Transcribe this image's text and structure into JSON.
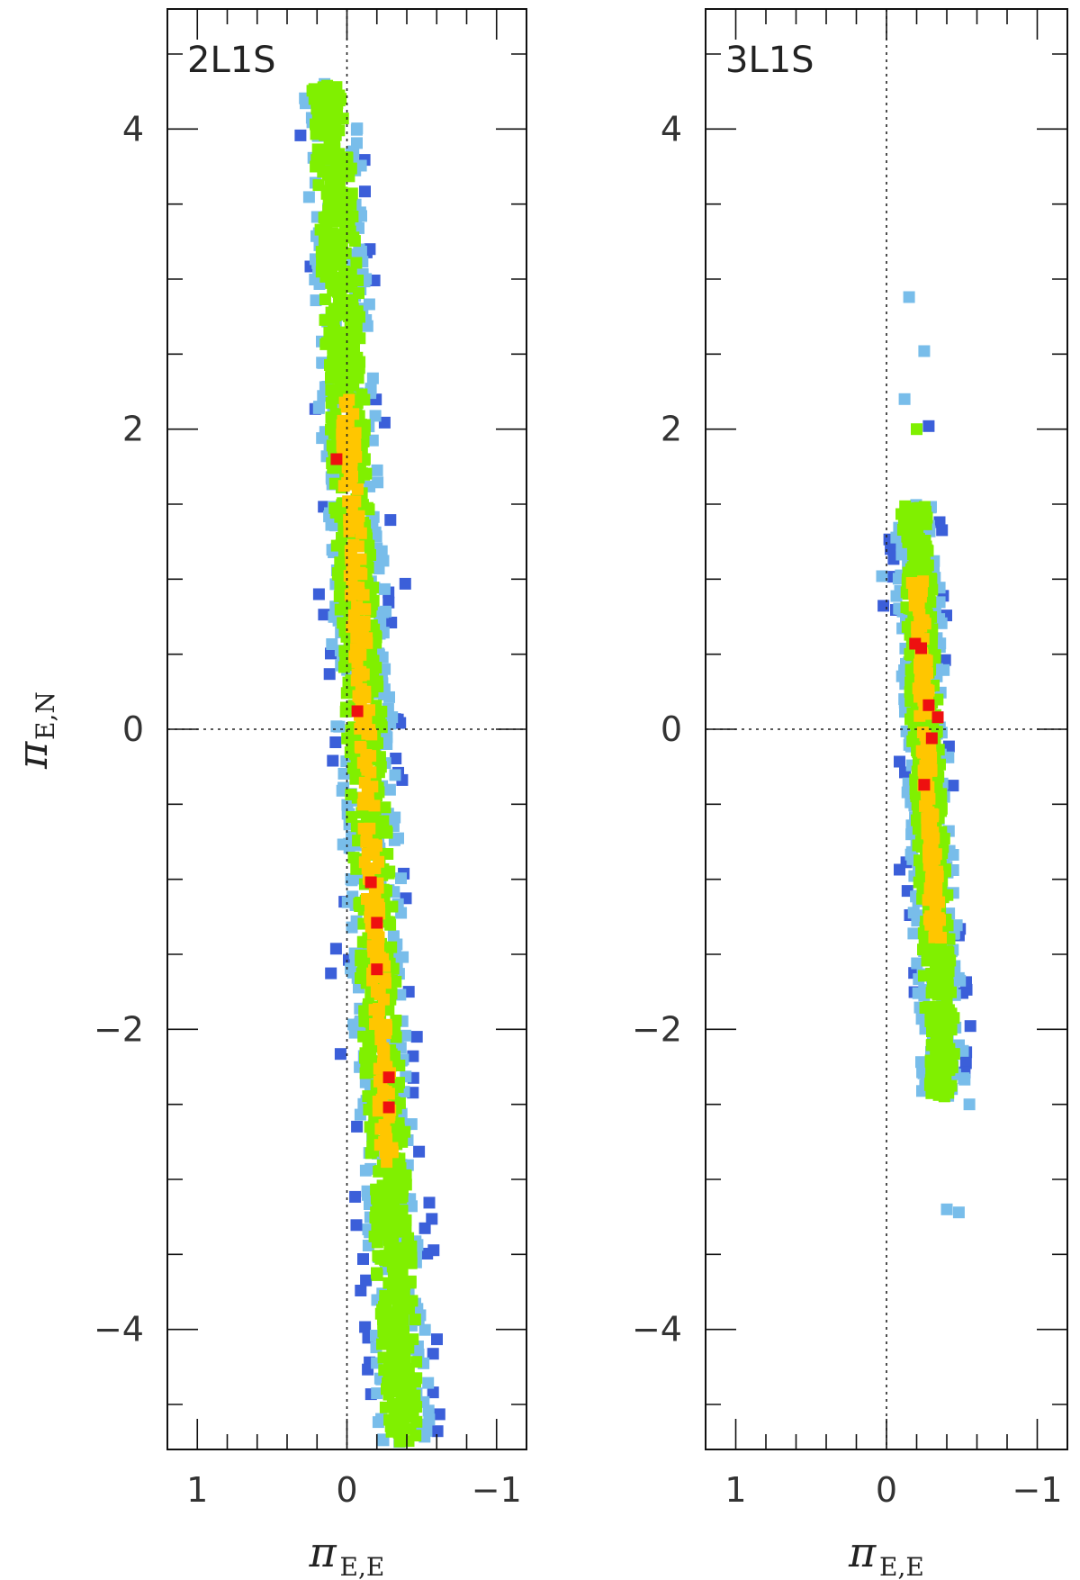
{
  "colors": {
    "frame": "#111111",
    "ref_line": "#222222",
    "level_colors": [
      "#3b5fd9",
      "#78bdea",
      "#80f000",
      "#ffc600",
      "#ee1010"
    ]
  },
  "chart_data": [
    {
      "type": "scatter",
      "panel_label": "2L1S",
      "xlabel": "π",
      "xlabel_sub": "E,E",
      "ylabel": "π",
      "ylabel_sub": "E,N",
      "xlim": [
        1.2,
        -1.2
      ],
      "ylim": [
        -4.8,
        4.8
      ],
      "xticks": [
        1,
        0,
        -1
      ],
      "yticks": [
        -4,
        -2,
        0,
        2,
        4
      ],
      "xtick_labels": [
        "1",
        "0",
        "−1"
      ],
      "ytick_labels": [
        "−4",
        "−2",
        "0",
        "2",
        "4"
      ],
      "reference_lines": {
        "x0": true,
        "y0": true
      },
      "cloud": {
        "trend": "linear",
        "x_at_y_top": 0.12,
        "x_at_y_bottom": -0.38,
        "y_range": [
          -4.75,
          4.3
        ],
        "x_width": 0.09,
        "core_y_range": [
          -2.9,
          2.2
        ],
        "sort_order": "by_level"
      },
      "highlights": [
        {
          "x": 0.07,
          "y": 1.8,
          "level": 4
        },
        {
          "x": -0.07,
          "y": 0.12,
          "level": 4
        },
        {
          "x": -0.16,
          "y": -1.02,
          "level": 4
        },
        {
          "x": -0.2,
          "y": -1.29,
          "level": 4
        },
        {
          "x": -0.2,
          "y": -1.6,
          "level": 4
        },
        {
          "x": -0.28,
          "y": -2.32,
          "level": 4
        },
        {
          "x": -0.28,
          "y": -2.52,
          "level": 4
        },
        {
          "x": 0.15,
          "y": 4.2,
          "level": 2
        },
        {
          "x": 0.15,
          "y": 4.3,
          "level": 1
        },
        {
          "x": -0.45,
          "y": -4.45,
          "level": 0
        },
        {
          "x": -0.55,
          "y": -4.6,
          "level": 1
        },
        {
          "x": -0.35,
          "y": -4.75,
          "level": 1
        }
      ]
    },
    {
      "type": "scatter",
      "panel_label": "3L1S",
      "xlabel": "π",
      "xlabel_sub": "E,E",
      "ylabel": "",
      "ylabel_sub": "",
      "xlim": [
        1.2,
        -1.2
      ],
      "ylim": [
        -4.8,
        4.8
      ],
      "xticks": [
        1,
        0,
        -1
      ],
      "yticks": [
        -4,
        -2,
        0,
        2,
        4
      ],
      "xtick_labels": [
        "1",
        "0",
        "−1"
      ],
      "ytick_labels": [
        "−4",
        "−2",
        "0",
        "2",
        "4"
      ],
      "reference_lines": {
        "x0": true,
        "y0": true
      },
      "cloud": {
        "trend": "linear",
        "x_at_y_top": -0.18,
        "x_at_y_bottom": -0.38,
        "y_range": [
          -2.45,
          1.5
        ],
        "x_width": 0.07,
        "core_y_range": [
          -1.4,
          1.0
        ],
        "sort_order": "by_level"
      },
      "highlights": [
        {
          "x": -0.19,
          "y": 0.57,
          "level": 4
        },
        {
          "x": -0.23,
          "y": 0.54,
          "level": 4
        },
        {
          "x": -0.28,
          "y": 0.16,
          "level": 4
        },
        {
          "x": -0.34,
          "y": 0.08,
          "level": 4
        },
        {
          "x": -0.3,
          "y": -0.06,
          "level": 4
        },
        {
          "x": -0.25,
          "y": -0.37,
          "level": 4
        },
        {
          "x": -0.15,
          "y": 2.88,
          "level": 1
        },
        {
          "x": -0.25,
          "y": 2.52,
          "level": 1
        },
        {
          "x": -0.12,
          "y": 2.2,
          "level": 1
        },
        {
          "x": -0.28,
          "y": 2.02,
          "level": 0
        },
        {
          "x": -0.2,
          "y": 2.0,
          "level": 2
        },
        {
          "x": -0.55,
          "y": -2.5,
          "level": 1
        },
        {
          "x": -0.4,
          "y": -3.2,
          "level": 1
        },
        {
          "x": -0.48,
          "y": -3.22,
          "level": 1
        },
        {
          "x": 0.03,
          "y": 1.02,
          "level": 1
        }
      ]
    }
  ]
}
